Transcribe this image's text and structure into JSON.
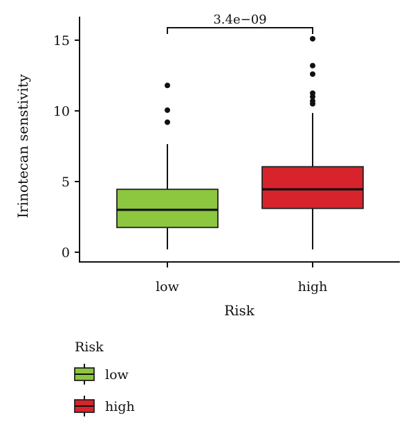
{
  "chart_data": {
    "type": "boxplot",
    "xlabel": "Risk",
    "ylabel": "Irinotecan senstivity",
    "ylim": [
      0,
      16
    ],
    "yticks": [
      0,
      5,
      10,
      15
    ],
    "categories": [
      "low",
      "high"
    ],
    "boxes": [
      {
        "name": "low",
        "color": "#8DC63F",
        "whisker_low": 0.2,
        "q1": 1.75,
        "median": 3.0,
        "q3": 4.45,
        "whisker_high": 7.65,
        "outliers": [
          9.2,
          10.05,
          11.8
        ]
      },
      {
        "name": "high",
        "color": "#D7242C",
        "whisker_low": 0.2,
        "q1": 3.1,
        "median": 4.45,
        "q3": 6.05,
        "whisker_high": 9.85,
        "outliers": [
          10.5,
          10.7,
          11.0,
          11.25,
          12.6,
          13.2,
          15.1
        ]
      }
    ],
    "comparison": {
      "label": "3.4e−09",
      "between": [
        "low",
        "high"
      ]
    },
    "legend": {
      "title": "Risk",
      "position": "bottom-left",
      "entries": [
        {
          "label": "low",
          "color": "#8DC63F"
        },
        {
          "label": "high",
          "color": "#D7242C"
        }
      ]
    },
    "grid": false
  }
}
